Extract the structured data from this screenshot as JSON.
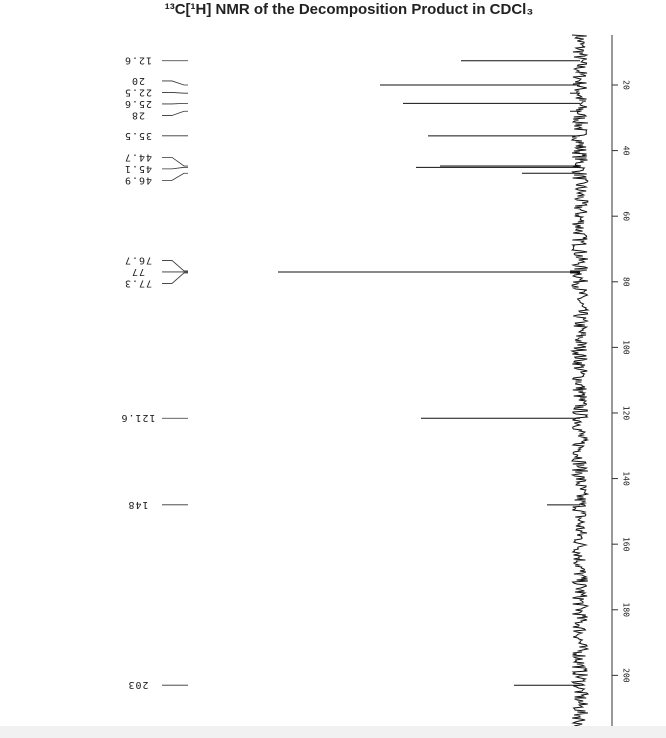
{
  "chart_data": {
    "type": "nmr",
    "title": "¹³C[¹H] NMR of the Decomposition Product in CDCl₃",
    "x": [
      12.6,
      20.0,
      22.5,
      25.6,
      28.0,
      35.5,
      44.7,
      45.1,
      46.9,
      76.7,
      77.0,
      77.3,
      121.6,
      148.0,
      203.0
    ],
    "values": [
      119,
      200,
      10,
      177,
      10,
      152,
      140,
      164,
      58,
      10,
      302,
      10,
      159,
      33,
      66
    ],
    "color": "#111111",
    "xlim": [
      0,
      218
    ],
    "xticks": [
      20,
      40,
      60,
      80,
      100,
      120,
      140,
      160,
      180,
      200
    ],
    "ylim": [
      0,
      320
    ]
  }
}
